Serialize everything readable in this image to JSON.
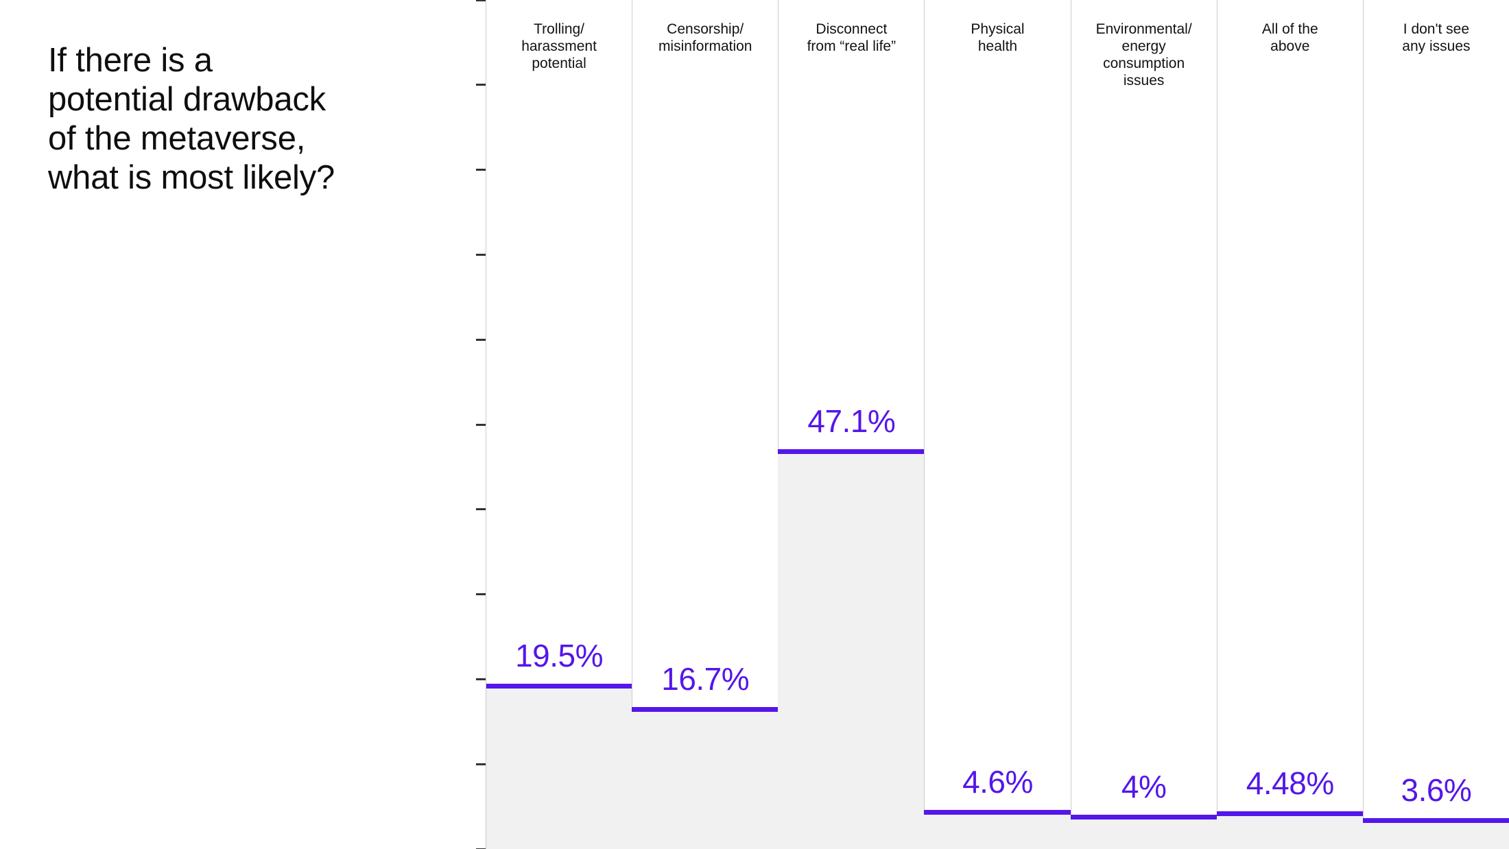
{
  "title": "If there is a\npotential drawback\nof the metaverse,\nwhat is most likely?",
  "colors": {
    "accent": "#5416ea",
    "bar_fill": "#f1f1f1",
    "divider": "#cccccc",
    "tick": "#333333",
    "text": "#111111",
    "background": "#ffffff"
  },
  "chart_data": {
    "type": "bar",
    "orientation": "vertical",
    "title": "If there is a potential drawback of the metaverse, what is most likely?",
    "categories": [
      "Trolling/\nharassment\npotential",
      "Censorship/\nmisinformation",
      "Disconnect\nfrom “real life”",
      "Physical\nhealth",
      "Environmental/\nenergy\nconsumption\nissues",
      "All of the\nabove",
      "I don't see\nany issues"
    ],
    "values": [
      19.5,
      16.7,
      47.1,
      4.6,
      4,
      4.48,
      3.6
    ],
    "value_labels": [
      "19.5%",
      "16.7%",
      "47.1%",
      "4.6%",
      "4%",
      "4.48%",
      "3.6%"
    ],
    "xlabel": "",
    "ylabel": "",
    "ylim": [
      0,
      100
    ],
    "tick_step": 10,
    "grid": false,
    "legend": false
  }
}
